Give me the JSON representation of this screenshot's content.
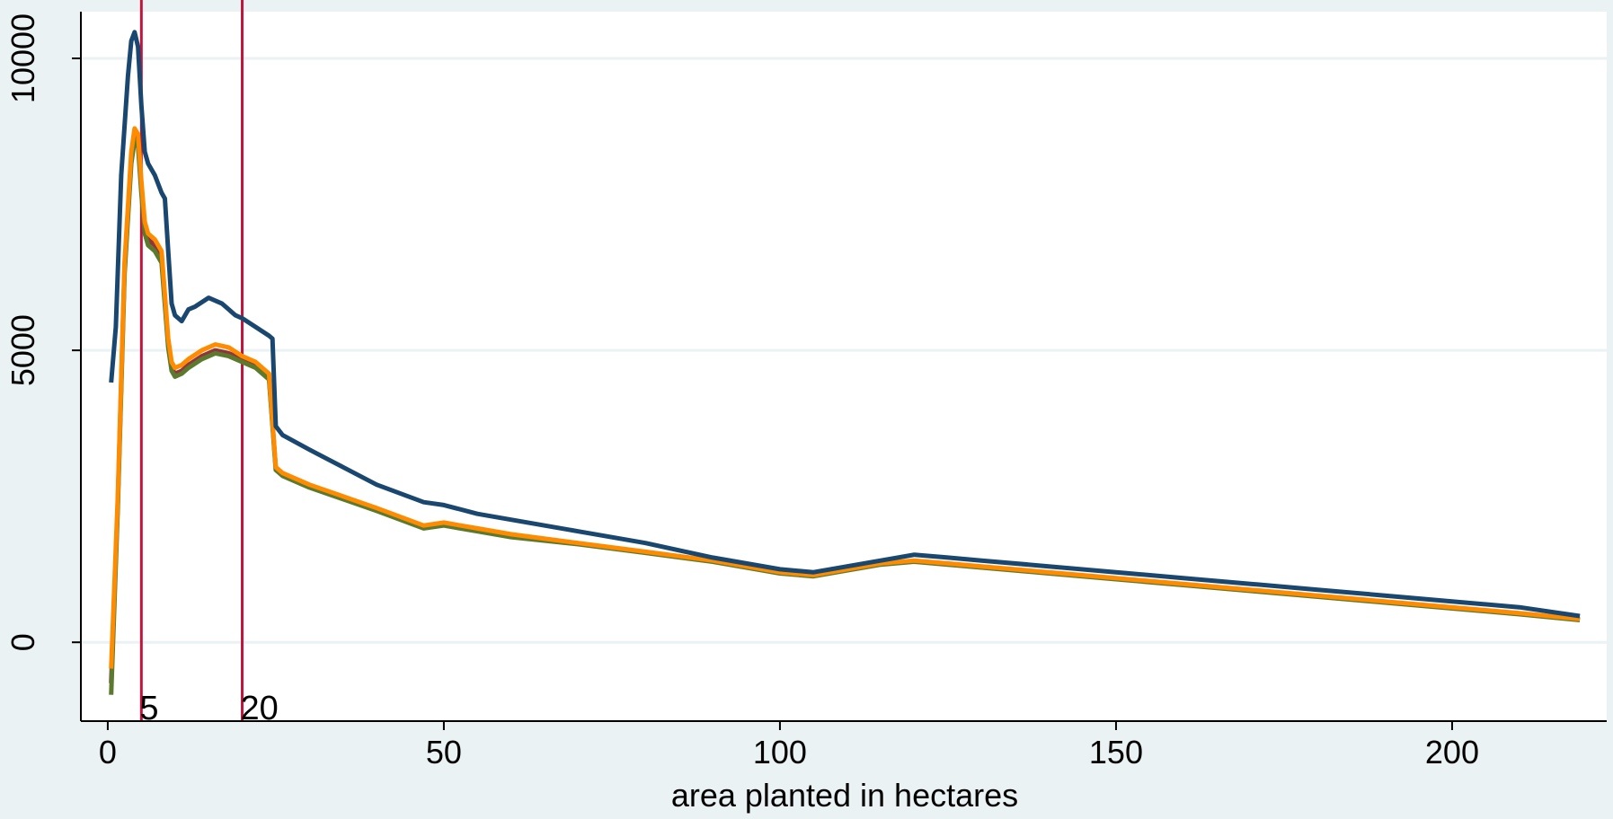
{
  "chart_data": {
    "type": "line",
    "title": "",
    "xlabel": "area planted in hectares",
    "ylabel": "",
    "xlim": [
      -4,
      223
    ],
    "ylim": [
      -1350,
      10800
    ],
    "xticks": [
      0,
      50,
      100,
      150,
      200
    ],
    "yticks": [
      0,
      5000,
      10000
    ],
    "grid": "horizontal",
    "colors": {
      "background": "#eaf2f3",
      "plot_area": "#ffffff",
      "gridline": "#eaf2f3",
      "reference_line": "#c0143c"
    },
    "reference_lines": [
      {
        "x": 5,
        "label": "5"
      },
      {
        "x": 20,
        "label": "20"
      }
    ],
    "series": [
      {
        "color": "#1a476f",
        "x": [
          0.5,
          1.2,
          2,
          3,
          3.5,
          4,
          4.5,
          5,
          5.5,
          6,
          7,
          8,
          8.5,
          9,
          9.5,
          10,
          11,
          12,
          13,
          15,
          17,
          19,
          20,
          22,
          24,
          24.5,
          25,
          26,
          30,
          35,
          40,
          47,
          50,
          55,
          60,
          70,
          80,
          90,
          100,
          105,
          110,
          115,
          120,
          125,
          130,
          140,
          150,
          160,
          170,
          180,
          190,
          200,
          210,
          219
        ],
        "y": [
          4450,
          5400,
          8000,
          9700,
          10300,
          10450,
          10200,
          9200,
          8400,
          8200,
          8000,
          7700,
          7600,
          6700,
          5800,
          5600,
          5500,
          5700,
          5750,
          5900,
          5800,
          5600,
          5550,
          5400,
          5250,
          5200,
          3700,
          3550,
          3300,
          3000,
          2700,
          2400,
          2350,
          2200,
          2100,
          1900,
          1700,
          1450,
          1250,
          1200,
          1300,
          1400,
          1500,
          1450,
          1400,
          1300,
          1200,
          1100,
          1000,
          900,
          800,
          700,
          600,
          450
        ]
      },
      {
        "color": "#ff8c00",
        "x": [
          0.5,
          1.5,
          2.5,
          3.5,
          4,
          4.5,
          5,
          5.5,
          6,
          7,
          8,
          9,
          9.5,
          10,
          11,
          12,
          14,
          16,
          18,
          20,
          22,
          24,
          25,
          26,
          30,
          35,
          40,
          47,
          50,
          55,
          60,
          70,
          80,
          90,
          100,
          105,
          110,
          115,
          120,
          125,
          130,
          140,
          150,
          160,
          170,
          180,
          190,
          200,
          210,
          219
        ],
        "y": [
          -450,
          2500,
          6500,
          8400,
          8800,
          8700,
          7900,
          7200,
          7000,
          6900,
          6700,
          5200,
          4800,
          4700,
          4750,
          4850,
          5000,
          5100,
          5050,
          4900,
          4800,
          4600,
          3000,
          2900,
          2700,
          2500,
          2300,
          2000,
          2050,
          1950,
          1850,
          1700,
          1550,
          1400,
          1200,
          1150,
          1250,
          1350,
          1400,
          1350,
          1300,
          1200,
          1100,
          1000,
          900,
          800,
          700,
          600,
          500,
          400
        ]
      },
      {
        "color": "#5b7a2e",
        "x": [
          0.5,
          1.5,
          2.5,
          3.5,
          4,
          4.5,
          5,
          5.5,
          6,
          7,
          8,
          9,
          9.5,
          10,
          11,
          12,
          14,
          16,
          18,
          20,
          22,
          24,
          25,
          26,
          30,
          35,
          40,
          47,
          50,
          55,
          60,
          70,
          80,
          90,
          100,
          105,
          110,
          115,
          120,
          125,
          130,
          140,
          150,
          160,
          170,
          180,
          190,
          200,
          210,
          219
        ],
        "y": [
          -900,
          2300,
          6300,
          8200,
          8600,
          8500,
          7700,
          7000,
          6800,
          6700,
          6500,
          5050,
          4650,
          4550,
          4600,
          4700,
          4850,
          4950,
          4900,
          4800,
          4700,
          4500,
          2950,
          2850,
          2650,
          2450,
          2250,
          1950,
          2000,
          1900,
          1800,
          1680,
          1530,
          1380,
          1180,
          1130,
          1230,
          1330,
          1380,
          1330,
          1280,
          1180,
          1080,
          980,
          880,
          780,
          680,
          580,
          480,
          380
        ]
      },
      {
        "color": "#90353b",
        "x": [
          0.5,
          1.5,
          2.5,
          3.5,
          4,
          4.5,
          5,
          5.5,
          6,
          7,
          8,
          9,
          9.5,
          10,
          11,
          12,
          14,
          16,
          18,
          20,
          22,
          24,
          25,
          26,
          30,
          35,
          40,
          47,
          50,
          55,
          60,
          70,
          80,
          90,
          100,
          105,
          110,
          115,
          120,
          125,
          130,
          140,
          150,
          160,
          170,
          180,
          190,
          200,
          210,
          219
        ],
        "y": [
          -700,
          2400,
          6400,
          8300,
          8700,
          8600,
          7800,
          7100,
          6900,
          6800,
          6600,
          5100,
          4700,
          4600,
          4650,
          4750,
          4900,
          5000,
          4950,
          4850,
          4750,
          4550,
          2980,
          2880,
          2680,
          2480,
          2280,
          1980,
          2020,
          1920,
          1820,
          1690,
          1540,
          1390,
          1190,
          1140,
          1240,
          1340,
          1390,
          1340,
          1290,
          1190,
          1090,
          990,
          890,
          790,
          690,
          590,
          490,
          390
        ]
      }
    ]
  }
}
